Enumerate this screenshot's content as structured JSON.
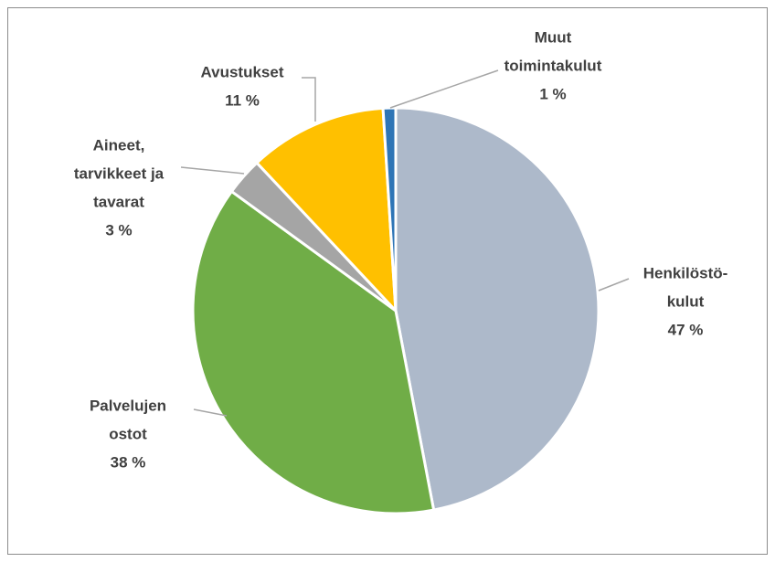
{
  "chart_data": {
    "type": "pie",
    "categories": [
      [
        "Henkilöstö-",
        "kulut"
      ],
      [
        "Palvelujen",
        "ostot"
      ],
      [
        "Aineet,",
        "tarvikkeet ja",
        "tavarat"
      ],
      [
        "Avustukset"
      ],
      [
        "Muut",
        "toimintakulut"
      ]
    ],
    "values": [
      47,
      38,
      3,
      11,
      1
    ],
    "value_labels": [
      "47 %",
      "38 %",
      "3 %",
      "11 %",
      "1 %"
    ],
    "colors": [
      "#adb9ca",
      "#70ad47",
      "#a5a5a5",
      "#ffc000",
      "#2e75b6"
    ]
  }
}
